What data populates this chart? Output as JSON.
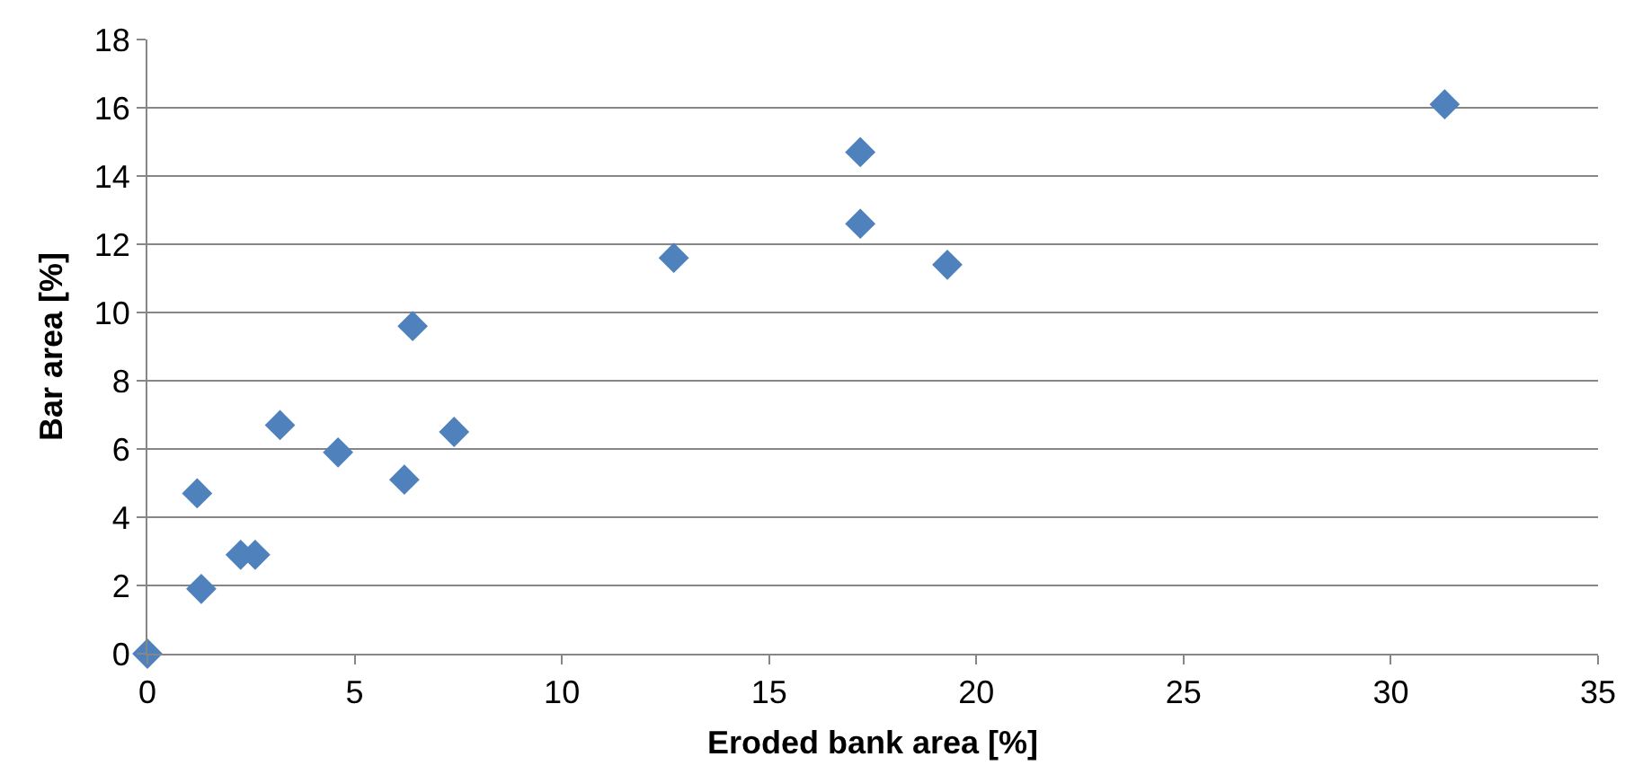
{
  "chart_data": {
    "type": "scatter",
    "xlabel": "Eroded bank area [%]",
    "ylabel": "Bar area [%]",
    "x": [
      0,
      1.2,
      1.3,
      2.25,
      2.6,
      3.2,
      4.6,
      6.2,
      6.4,
      7.4,
      12.7,
      17.2,
      17.2,
      19.3,
      31.3
    ],
    "series": [
      {
        "color": "#4f81bd",
        "values": [
          0,
          4.7,
          1.9,
          2.9,
          2.9,
          6.7,
          5.9,
          5.1,
          9.6,
          6.5,
          11.6,
          14.7,
          12.6,
          11.4,
          16.1
        ]
      }
    ],
    "xlim": [
      0,
      35
    ],
    "xticks": [
      0,
      5,
      10,
      15,
      20,
      25,
      30,
      35
    ],
    "ylim": [
      0,
      18
    ],
    "yticks": [
      0,
      2,
      4,
      6,
      8,
      10,
      12,
      14,
      16,
      18
    ],
    "grid": "y",
    "marker": "diamond",
    "legend": false
  }
}
